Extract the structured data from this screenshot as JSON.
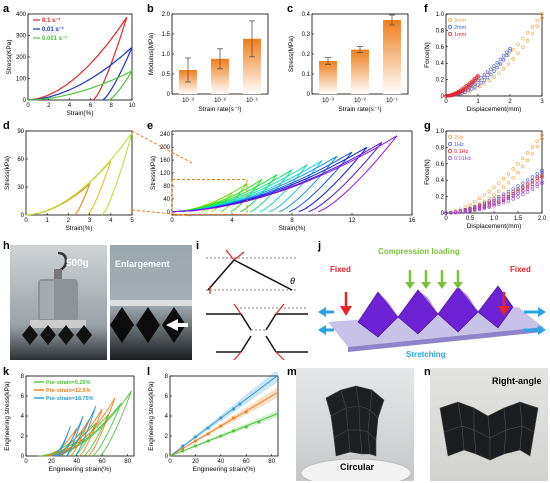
{
  "panels": {
    "a": "a",
    "b": "b",
    "c": "c",
    "d": "d",
    "e": "e",
    "f": "f",
    "g": "g",
    "h": "h",
    "i": "i",
    "j": "j",
    "k": "k",
    "l": "l",
    "m": "m",
    "n": "n"
  },
  "photos": {
    "h_weight": "500g",
    "h_zoom": "Enlargement",
    "j_left": "Fixed",
    "j_right": "Fixed",
    "j_top": "Compression loading",
    "j_bottom": "Stretching",
    "i_theta": "θ",
    "m_label": "Circular",
    "n_label": "Right-angle"
  },
  "colors": {
    "orange": "#f07d1a",
    "red": "#e52329",
    "blue": "#1a2fd6",
    "green": "#4cc63b",
    "purple": "#7a33d6"
  },
  "chart_data": [
    {
      "id": "a",
      "type": "line",
      "xlabel": "Strain(%)",
      "ylabel": "Stress(KPa)",
      "xlim": [
        0,
        10
      ],
      "ylim": [
        0,
        400
      ],
      "xticks": [
        "0",
        "2",
        "4",
        "6",
        "8",
        "10"
      ],
      "yticks": [
        "0",
        "100",
        "200",
        "300",
        "400"
      ],
      "series": [
        {
          "name": "0.1 s⁻¹",
          "color": "#e52329"
        },
        {
          "name": "0.01 s⁻¹",
          "color": "#1a2fd6"
        },
        {
          "name": "0.001 s⁻¹",
          "color": "#4cc63b"
        }
      ],
      "loops": [
        {
          "peak": [
            9.5,
            385
          ],
          "return": 6.3,
          "color": "#e52329"
        },
        {
          "peak": [
            10,
            245
          ],
          "return": 7.2,
          "color": "#1a2fd6"
        },
        {
          "peak": [
            10,
            135
          ],
          "return": 7.8,
          "color": "#4cc63b"
        }
      ]
    },
    {
      "id": "b",
      "type": "bar",
      "xlabel": "Strain rate(s⁻¹)",
      "ylabel": "Modulus(MPa)",
      "categories": [
        "10⁻³",
        "10⁻²",
        "10⁻¹"
      ],
      "values": [
        0.6,
        0.88,
        1.38
      ],
      "errors": [
        0.3,
        0.25,
        0.45
      ],
      "ylim": [
        0,
        2.0
      ],
      "yticks": [
        "0",
        "0.5",
        "1.0",
        "1.5",
        "2.0"
      ]
    },
    {
      "id": "c",
      "type": "bar",
      "xlabel": "Strain rate(s⁻¹)",
      "ylabel": "Stress(MPa)",
      "categories": [
        "10⁻³",
        "10⁻²",
        "10⁻¹"
      ],
      "values": [
        0.165,
        0.222,
        0.37
      ],
      "errors": [
        0.017,
        0.015,
        0.025
      ],
      "ylim": [
        0,
        0.4
      ],
      "yticks": [
        "0",
        "0.1",
        "0.2",
        "0.3",
        "0.4"
      ]
    },
    {
      "id": "d",
      "type": "line",
      "xlabel": "Strain(%)",
      "ylabel": "Stress(kPa)",
      "xlim": [
        0,
        5
      ],
      "ylim": [
        0,
        90
      ],
      "xticks": [
        "0",
        "1",
        "2",
        "3",
        "4",
        "5"
      ],
      "yticks": [
        "0",
        "30",
        "60",
        "90"
      ],
      "loops": [
        {
          "peak": [
            3,
            33
          ],
          "return": 2.3,
          "color": "#e08a1a"
        },
        {
          "peak": [
            4,
            58
          ],
          "return": 2.9,
          "color": "#e9c21a"
        },
        {
          "peak": [
            5,
            88
          ],
          "return": 3.6,
          "color": "#b8e03c"
        }
      ]
    },
    {
      "id": "e",
      "type": "line",
      "xlabel": "Strain(%)",
      "ylabel": "Stress(kPa)",
      "xlim": [
        0,
        16
      ],
      "ylim": [
        -10,
        250
      ],
      "xticks": [
        "0",
        "4",
        "8",
        "12",
        "16"
      ],
      "yticks": [
        "0",
        "40",
        "80",
        "120",
        "160",
        "200",
        "240"
      ],
      "loop_peaks": [
        [
          3,
          33
        ],
        [
          4,
          58
        ],
        [
          5,
          88
        ],
        [
          6,
          100
        ],
        [
          7,
          115
        ],
        [
          8,
          130
        ],
        [
          9,
          145
        ],
        [
          10,
          158
        ],
        [
          11,
          172
        ],
        [
          12,
          185
        ],
        [
          13,
          200
        ],
        [
          14,
          215
        ],
        [
          15,
          235
        ]
      ]
    },
    {
      "id": "f",
      "type": "scatter",
      "xlabel": "Displacement(mm)",
      "ylabel": "Force(N)",
      "xlim": [
        0,
        3
      ],
      "ylim": [
        0,
        1.0
      ],
      "xticks": [
        "0",
        "1",
        "2",
        "3"
      ],
      "yticks": [
        "0",
        "0.2",
        "0.4",
        "0.6",
        "0.8",
        "1.0"
      ],
      "series": [
        {
          "name": "3mm",
          "color": "#f5a040",
          "peak": [
            3,
            1.0
          ]
        },
        {
          "name": "2mm",
          "color": "#3d5be0",
          "peak": [
            2,
            0.58
          ]
        },
        {
          "name": "1mm",
          "color": "#e52329",
          "peak": [
            1,
            0.25
          ]
        }
      ]
    },
    {
      "id": "g",
      "type": "scatter",
      "xlabel": "Displacement(mm)",
      "ylabel": "Force(N)",
      "xlim": [
        0,
        2
      ],
      "ylim": [
        0,
        1.0
      ],
      "xticks": [
        "0",
        "0.5",
        "1.0",
        "1.5",
        "2.0"
      ],
      "yticks": [
        "0",
        "0.2",
        "0.4",
        "0.6",
        "0.8",
        "1.0"
      ],
      "series": [
        {
          "name": "2Hz",
          "color": "#f5a040",
          "peak": [
            2,
            0.95
          ]
        },
        {
          "name": "1Hz",
          "color": "#3d5be0",
          "peak": [
            2,
            0.52
          ]
        },
        {
          "name": "0.1Hz",
          "color": "#e52329",
          "peak": [
            2,
            0.46
          ]
        },
        {
          "name": "0.01Hz",
          "color": "#9a4de0",
          "peak": [
            2,
            0.38
          ]
        }
      ]
    },
    {
      "id": "k",
      "type": "line",
      "xlabel": "Engineering strain(%)",
      "ylabel": "Engineering stress(kPa)",
      "xlim": [
        0,
        85
      ],
      "ylim": [
        0,
        8
      ],
      "xticks": [
        "0",
        "20",
        "40",
        "60",
        "80"
      ],
      "yticks": [
        "0",
        "2",
        "4",
        "6",
        "8"
      ],
      "series": [
        {
          "name": "Pre-strain=6.25%",
          "color": "#4cc63b",
          "peaks": [
            [
              45,
              2.5
            ],
            [
              55,
              3.3
            ],
            [
              65,
              4.2
            ],
            [
              75,
              5.3
            ],
            [
              83,
              6.5
            ]
          ]
        },
        {
          "name": "Pre-strain=12.5%",
          "color": "#f07d1a",
          "peaks": [
            [
              40,
              2.8
            ],
            [
              50,
              3.7
            ],
            [
              60,
              4.7
            ],
            [
              70,
              5.8
            ]
          ]
        },
        {
          "name": "Pre-strain=18.75%",
          "color": "#2a9ad6",
          "peaks": [
            [
              35,
              3.0
            ],
            [
              45,
              4.0
            ],
            [
              55,
              5.0
            ]
          ]
        }
      ]
    },
    {
      "id": "l",
      "type": "scatter",
      "xlabel": "Engineering strain(%)",
      "ylabel": "Engineering stress(kPa)",
      "xlim": [
        0,
        85
      ],
      "ylim": [
        0,
        8
      ],
      "xticks": [
        "0",
        "20",
        "40",
        "60",
        "80"
      ],
      "yticks": [
        "0",
        "2",
        "4",
        "6",
        "8"
      ],
      "series": [
        {
          "color": "#2a9ad6",
          "slope": 0.095,
          "points": [
            [
              10,
              1.0
            ],
            [
              20,
              1.9
            ],
            [
              30,
              2.8
            ],
            [
              40,
              3.8
            ],
            [
              50,
              4.7
            ],
            [
              55,
              5.2
            ]
          ]
        },
        {
          "color": "#f07d1a",
          "slope": 0.075,
          "points": [
            [
              10,
              0.7
            ],
            [
              20,
              1.5
            ],
            [
              30,
              2.2
            ],
            [
              40,
              3.0
            ],
            [
              50,
              3.8
            ],
            [
              60,
              4.4
            ]
          ]
        },
        {
          "color": "#4cc63b",
          "slope": 0.05,
          "points": [
            [
              10,
              0.5
            ],
            [
              20,
              1.0
            ],
            [
              30,
              1.5
            ],
            [
              40,
              2.0
            ],
            [
              50,
              2.5
            ],
            [
              60,
              2.9
            ],
            [
              70,
              3.4
            ]
          ]
        }
      ]
    }
  ]
}
